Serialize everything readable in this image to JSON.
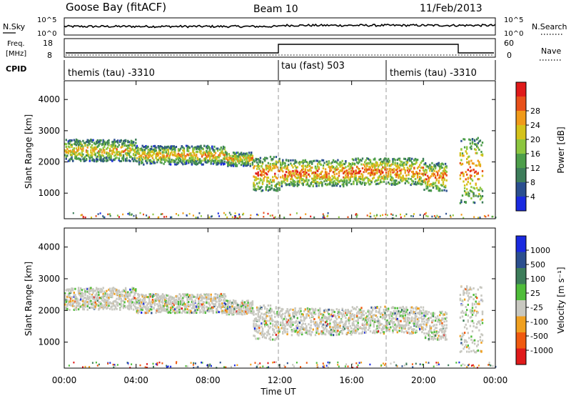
{
  "header": {
    "site": "Goose Bay (fitACF)",
    "beam": "Beam 10",
    "date": "11/Feb/2013"
  },
  "noise_panel": {
    "left_label": "N.Sky",
    "left_ticks": [
      "10^5",
      "10^0"
    ],
    "right_ticks": [
      "10^5",
      "10^0"
    ],
    "right_label": "N.Search"
  },
  "freq_panel": {
    "left_label_1": "Freq.",
    "left_label_2": "[MHz]",
    "left_ticks": [
      "18",
      "8"
    ],
    "right_ticks": [
      "60",
      "0"
    ],
    "right_label": "Nave"
  },
  "cpid_panel": {
    "label": "CPID",
    "segments": [
      {
        "text": "themis (tau) -3310",
        "start_hour": 0
      },
      {
        "text": "tau (fast) 503",
        "start_hour": 12
      },
      {
        "text": "themis (tau) -3310",
        "start_hour": 18
      }
    ]
  },
  "x_axis": {
    "label": "Time UT",
    "tick_labels": [
      "00:00",
      "04:00",
      "08:00",
      "12:00",
      "16:00",
      "20:00",
      "00:00"
    ],
    "range_hours": [
      0,
      24
    ]
  },
  "power_panel": {
    "ylabel": "Slant Range [km]",
    "yticks": [
      "1000",
      "2000",
      "3000",
      "4000"
    ],
    "colorbar_label": "Power [dB]",
    "colorbar_ticks": [
      "4",
      "8",
      "12",
      "16",
      "20",
      "24",
      "28"
    ],
    "colors": [
      "#1a2ae0",
      "#2b4f8f",
      "#3d7d5a",
      "#4d9e4a",
      "#8cc63f",
      "#d4c21a",
      "#f09a1a",
      "#e8501a",
      "#e01a1a"
    ]
  },
  "velocity_panel": {
    "ylabel": "Slant Range [km]",
    "yticks": [
      "1000",
      "2000",
      "3000",
      "4000"
    ],
    "colorbar_label": "Velocity [m s⁻¹]",
    "colorbar_ticks": [
      "1000",
      "500",
      "100",
      "25",
      "-25",
      "-100",
      "-500",
      "-1000"
    ],
    "colors": [
      "#1a2ae0",
      "#2b4f8f",
      "#3d7d5a",
      "#4fbd3a",
      "#c8c8c0",
      "#f0a020",
      "#f05a10",
      "#e01a1a"
    ]
  },
  "chart_data": {
    "type": "heatmap",
    "x_unit": "hours UT",
    "y_range_km": [
      180,
      4600
    ],
    "power_bands": [
      {
        "t0": 0.0,
        "t1": 4.0,
        "r0": 2050,
        "r1": 2750
      },
      {
        "t0": 4.0,
        "t1": 9.0,
        "r0": 1950,
        "r1": 2550
      },
      {
        "t0": 9.0,
        "t1": 10.5,
        "r0": 1900,
        "r1": 2350
      },
      {
        "t0": 10.5,
        "t1": 12.0,
        "r0": 1100,
        "r1": 2200
      },
      {
        "t0": 12.0,
        "t1": 16.0,
        "r0": 1250,
        "r1": 2100
      },
      {
        "t0": 16.0,
        "t1": 20.0,
        "r0": 1300,
        "r1": 2150
      },
      {
        "t0": 20.0,
        "t1": 21.3,
        "r0": 1100,
        "r1": 2000
      },
      {
        "t0": 22.0,
        "t1": 23.3,
        "r0": 700,
        "r1": 2800
      }
    ],
    "data_gap_hours": [
      21.3,
      22.0
    ]
  }
}
